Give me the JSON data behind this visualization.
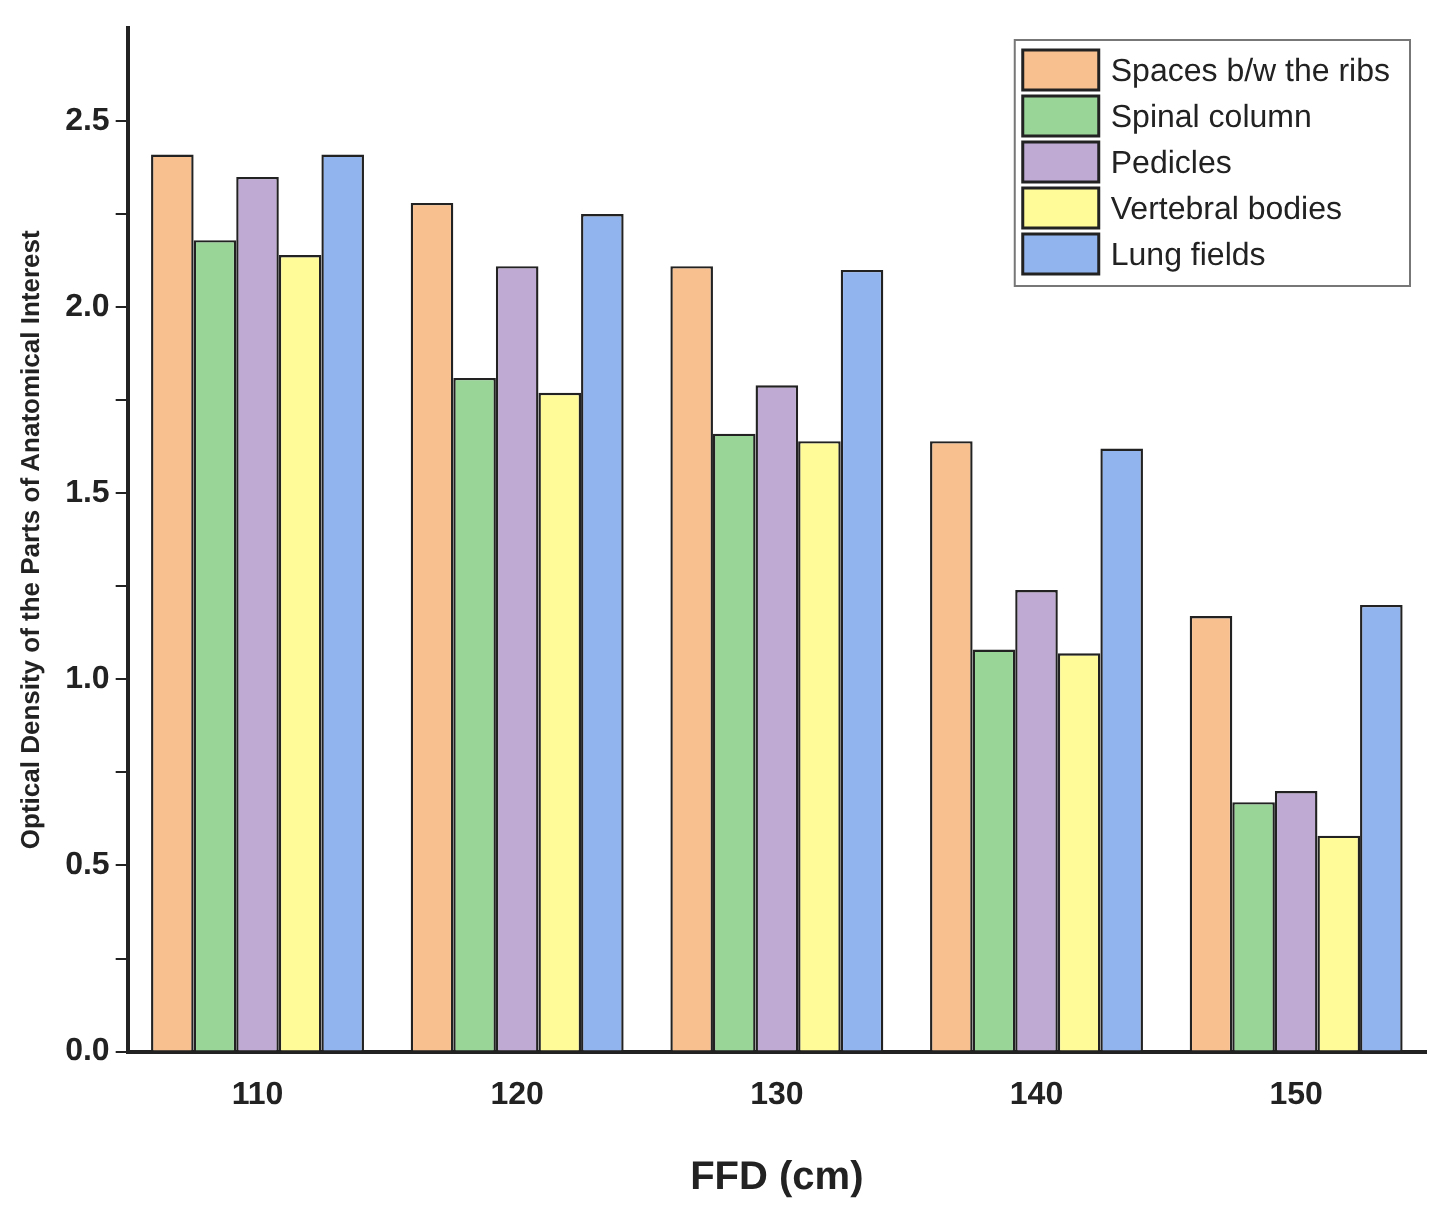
{
  "chart_data": {
    "type": "bar",
    "xlabel": "FFD (cm)",
    "ylabel": "Optical Density of the Parts of Anatomical Interest",
    "categories": [
      "110",
      "120",
      "130",
      "140",
      "150"
    ],
    "series": [
      {
        "name": "Spaces b/w the ribs",
        "color": "#f9c08f",
        "values": [
          2.41,
          2.28,
          2.11,
          1.64,
          1.17
        ]
      },
      {
        "name": "Spinal column",
        "color": "#98d597",
        "values": [
          2.18,
          1.81,
          1.66,
          1.08,
          0.67
        ]
      },
      {
        "name": "Pedicles",
        "color": "#bfaad4",
        "values": [
          2.35,
          2.11,
          1.79,
          1.24,
          0.7
        ]
      },
      {
        "name": "Vertebral bodies",
        "color": "#fffb98",
        "values": [
          2.14,
          1.77,
          1.64,
          1.07,
          0.58
        ]
      },
      {
        "name": "Lung fields",
        "color": "#92b4ee",
        "values": [
          2.41,
          2.25,
          2.1,
          1.62,
          1.2
        ]
      }
    ],
    "ylim": [
      0,
      2.75
    ],
    "yticks": [
      {
        "value": 0,
        "label": "0.0"
      },
      {
        "value": 0.25,
        "label": null
      },
      0.5,
      {
        "value": 0.75,
        "label": null
      },
      {
        "value": 1,
        "label": "1.0"
      },
      {
        "value": 1.25,
        "label": null
      },
      1.5,
      {
        "value": 1.75,
        "label": null
      },
      {
        "value": 2,
        "label": "2.0"
      },
      {
        "value": 2.25,
        "label": null
      },
      2.5
    ],
    "grid": false,
    "legend": "top right"
  }
}
